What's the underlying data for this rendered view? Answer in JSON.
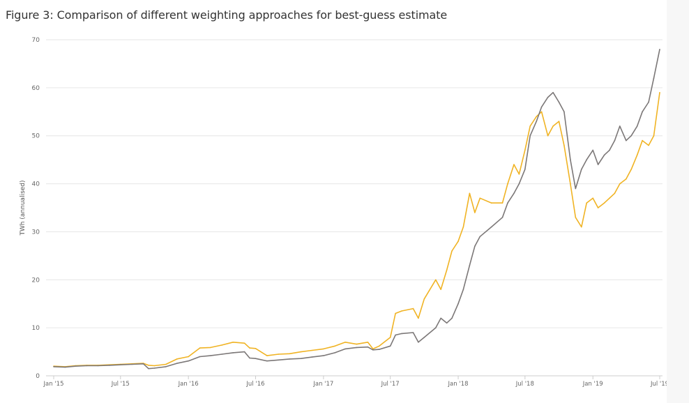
{
  "figure": {
    "title": "Figure 3: Comparison of different weighting approaches for best-guess estimate"
  },
  "chart_data": {
    "type": "line",
    "title": "Figure 3: Comparison of different weighting approaches for best-guess estimate",
    "xlabel": "",
    "ylabel": "TWh (annualised)",
    "ylim": [
      0,
      70
    ],
    "yticks": [
      0,
      10,
      20,
      30,
      40,
      50,
      60,
      70
    ],
    "xlim": [
      "2015-01-01",
      "2019-07-01"
    ],
    "xticks": [
      {
        "date": "2015-01-01",
        "label": "Jan '15"
      },
      {
        "date": "2015-07-01",
        "label": "Jul '15"
      },
      {
        "date": "2016-01-01",
        "label": "Jan '16"
      },
      {
        "date": "2016-07-01",
        "label": "Jul '16"
      },
      {
        "date": "2017-01-01",
        "label": "Jan '17"
      },
      {
        "date": "2017-07-01",
        "label": "Jul '17"
      },
      {
        "date": "2018-01-01",
        "label": "Jan '18"
      },
      {
        "date": "2018-07-01",
        "label": "Jul '18"
      },
      {
        "date": "2019-01-01",
        "label": "Jan '19"
      },
      {
        "date": "2019-07-01",
        "label": "Jul '19"
      }
    ],
    "grid": true,
    "legend": "none",
    "x": [
      "2015-01-01",
      "2015-02-01",
      "2015-03-01",
      "2015-04-01",
      "2015-05-01",
      "2015-06-01",
      "2015-07-01",
      "2015-08-01",
      "2015-09-01",
      "2015-09-15",
      "2015-10-01",
      "2015-11-01",
      "2015-12-01",
      "2016-01-01",
      "2016-02-01",
      "2016-03-01",
      "2016-04-01",
      "2016-05-01",
      "2016-06-01",
      "2016-06-15",
      "2016-07-01",
      "2016-08-01",
      "2016-09-01",
      "2016-10-01",
      "2016-11-01",
      "2016-12-01",
      "2017-01-01",
      "2017-02-01",
      "2017-03-01",
      "2017-04-01",
      "2017-05-01",
      "2017-05-15",
      "2017-06-01",
      "2017-07-01",
      "2017-07-15",
      "2017-08-01",
      "2017-09-01",
      "2017-09-15",
      "2017-10-01",
      "2017-11-01",
      "2017-11-15",
      "2017-12-01",
      "2017-12-15",
      "2018-01-01",
      "2018-01-15",
      "2018-02-01",
      "2018-02-15",
      "2018-03-01",
      "2018-04-01",
      "2018-05-01",
      "2018-05-15",
      "2018-06-01",
      "2018-06-15",
      "2018-07-01",
      "2018-07-15",
      "2018-08-01",
      "2018-08-15",
      "2018-09-01",
      "2018-09-15",
      "2018-10-01",
      "2018-10-15",
      "2018-11-01",
      "2018-11-15",
      "2018-12-01",
      "2018-12-15",
      "2019-01-01",
      "2019-01-15",
      "2019-02-01",
      "2019-02-15",
      "2019-03-01",
      "2019-03-15",
      "2019-04-01",
      "2019-04-15",
      "2019-05-01",
      "2019-05-15",
      "2019-06-01",
      "2019-06-15",
      "2019-07-01"
    ],
    "series": [
      {
        "color": "#f0b323",
        "values": [
          2.0,
          1.9,
          2.1,
          2.2,
          2.2,
          2.3,
          2.4,
          2.5,
          2.6,
          2.2,
          2.1,
          2.4,
          3.5,
          4.0,
          5.8,
          5.9,
          6.4,
          7.0,
          6.8,
          5.8,
          5.7,
          4.2,
          4.5,
          4.6,
          5.0,
          5.3,
          5.6,
          6.2,
          7.0,
          6.6,
          7.0,
          5.6,
          6.2,
          8.0,
          13.0,
          13.5,
          14.0,
          12.0,
          16.0,
          20.0,
          18.0,
          22.0,
          26.0,
          28.0,
          31.0,
          38.0,
          34.0,
          37.0,
          36.0,
          36.0,
          40.0,
          44.0,
          42.0,
          47.0,
          52.0,
          54.0,
          55.0,
          50.0,
          52.0,
          53.0,
          48.0,
          40.0,
          33.0,
          31.0,
          36.0,
          37.0,
          35.0,
          36.0,
          37.0,
          38.0,
          40.0,
          41.0,
          43.0,
          46.0,
          49.0,
          48.0,
          50.0,
          59.0
        ]
      },
      {
        "color": "#7b7777",
        "values": [
          1.9,
          1.8,
          2.0,
          2.1,
          2.1,
          2.2,
          2.3,
          2.4,
          2.5,
          1.5,
          1.6,
          1.9,
          2.6,
          3.1,
          4.0,
          4.2,
          4.5,
          4.8,
          5.0,
          3.7,
          3.6,
          3.1,
          3.3,
          3.5,
          3.6,
          3.9,
          4.2,
          4.8,
          5.6,
          5.9,
          6.0,
          5.4,
          5.5,
          6.2,
          8.5,
          8.8,
          9.0,
          7.0,
          8.0,
          10.0,
          12.0,
          11.0,
          12.0,
          15.0,
          18.0,
          23.0,
          27.0,
          29.0,
          31.0,
          33.0,
          36.0,
          38.0,
          40.0,
          43.0,
          50.0,
          53.0,
          56.0,
          58.0,
          59.0,
          57.0,
          55.0,
          45.0,
          39.0,
          43.0,
          45.0,
          47.0,
          44.0,
          46.0,
          47.0,
          49.0,
          52.0,
          49.0,
          50.0,
          52.0,
          55.0,
          57.0,
          62.0,
          68.0
        ]
      }
    ]
  }
}
